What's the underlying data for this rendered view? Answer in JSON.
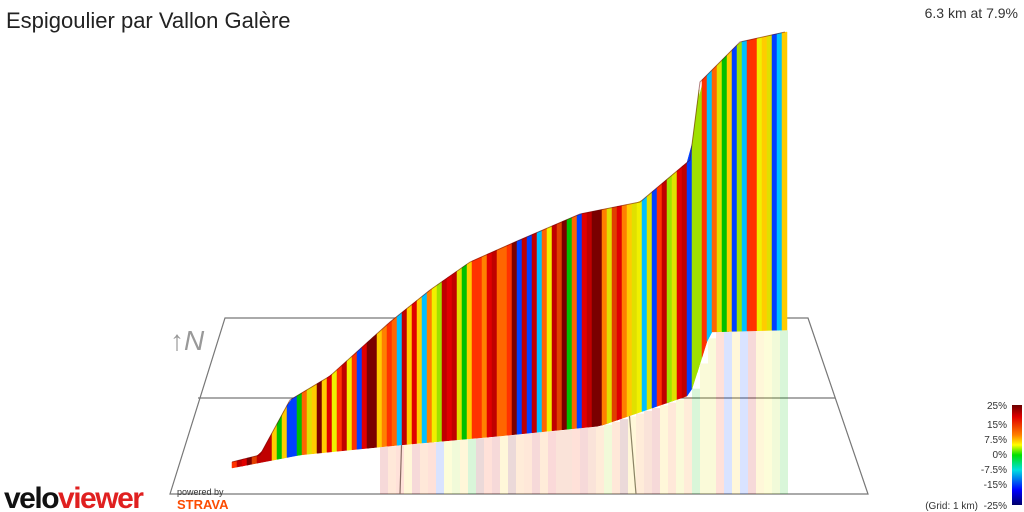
{
  "header": {
    "title": "Espigoulier par Vallon Galère",
    "summary": "6.3 km at 7.9%"
  },
  "compass": "↑N",
  "legend": {
    "labels": [
      "25%",
      "15%",
      "7.5%",
      "0%",
      "-7.5%",
      "-15%",
      "-25%"
    ],
    "grid_note": "(Grid: 1 km)"
  },
  "logo": {
    "velo": "velo",
    "viewer": "viewer",
    "powered_by": "powered by",
    "strava": "STRAVA"
  }
}
